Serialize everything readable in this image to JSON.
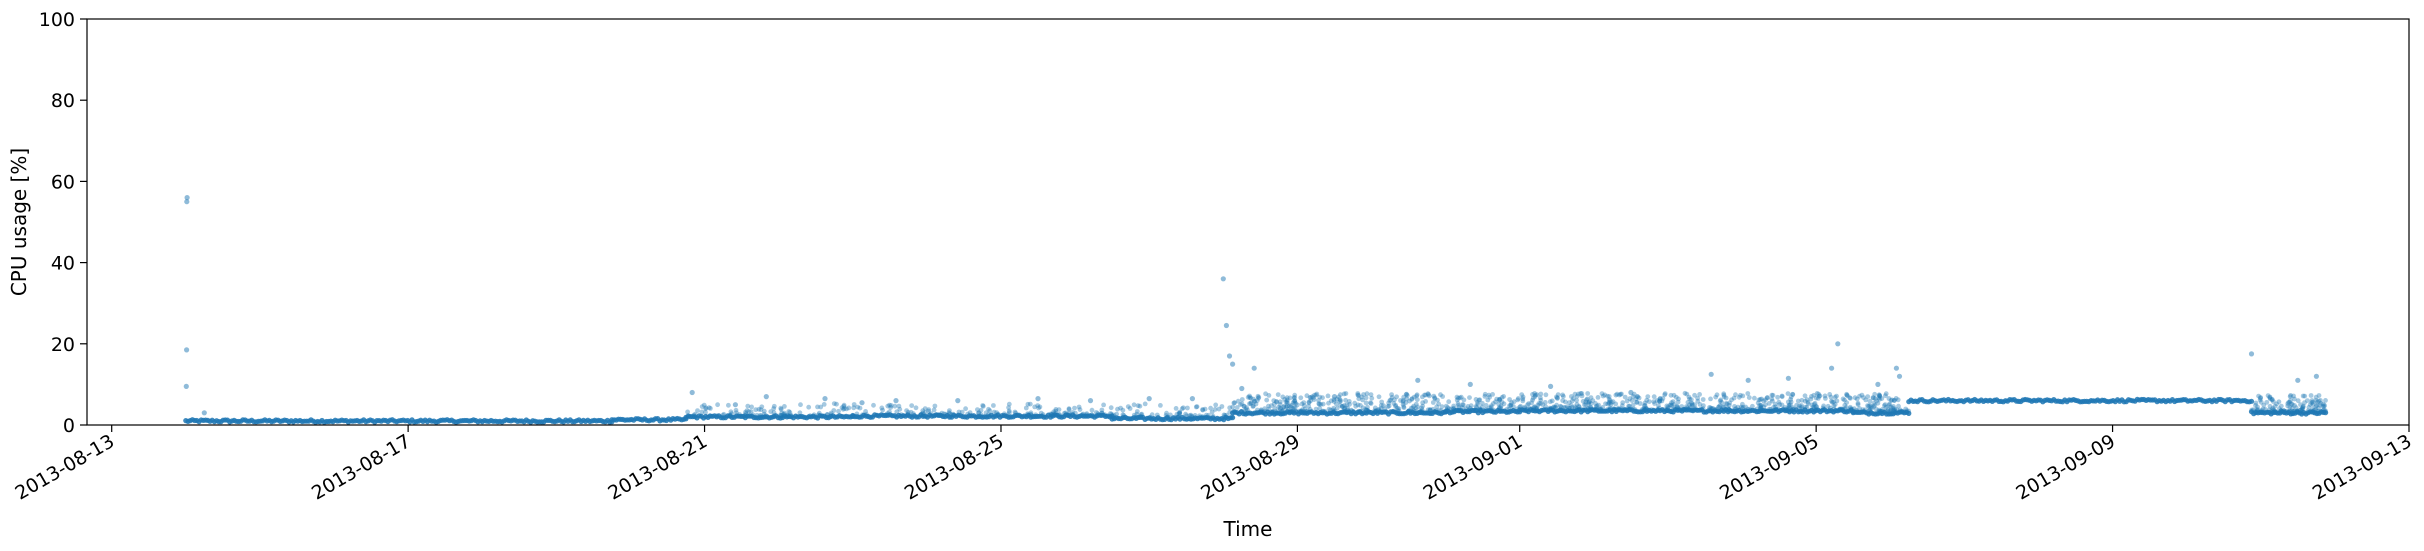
{
  "chart_data": {
    "type": "scatter",
    "title": "",
    "xlabel": "Time",
    "ylabel": "CPU usage [%]",
    "ylim": [
      0,
      100
    ],
    "xlim": [
      "2013-08-12T16:00",
      "2013-09-13T00:00"
    ],
    "x_ticks": [
      "2013-08-13",
      "2013-08-17",
      "2013-08-21",
      "2013-08-25",
      "2013-08-29",
      "2013-09-01",
      "2013-09-05",
      "2013-09-09",
      "2013-09-13"
    ],
    "y_ticks": [
      0,
      20,
      40,
      60,
      80,
      100
    ],
    "grid": false,
    "legend": "none",
    "marker_color": "#1f77b4",
    "marker_opacity": 0.4,
    "baseline_segments": [
      {
        "start": "2013-08-14T00:00",
        "end": "2013-08-19T18:00",
        "value": 1.0
      },
      {
        "start": "2013-08-19T18:00",
        "end": "2013-08-20T18:00",
        "value": 1.3
      },
      {
        "start": "2013-08-20T18:00",
        "end": "2013-08-23T00:00",
        "value": 2.0
      },
      {
        "start": "2013-08-23T00:00",
        "end": "2013-08-26T12:00",
        "value": 2.2
      },
      {
        "start": "2013-08-26T12:00",
        "end": "2013-08-28T03:00",
        "value": 1.6
      },
      {
        "start": "2013-08-28T03:00",
        "end": "2013-08-31T00:00",
        "value": 3.0
      },
      {
        "start": "2013-08-31T00:00",
        "end": "2013-09-01T00:00",
        "value": 3.3
      },
      {
        "start": "2013-09-01T00:00",
        "end": "2013-09-05T12:00",
        "value": 3.5
      },
      {
        "start": "2013-09-05T12:00",
        "end": "2013-09-06T06:00",
        "value": 3.0
      },
      {
        "start": "2013-09-06T06:00",
        "end": "2013-09-10T21:00",
        "value": 6.0
      },
      {
        "start": "2013-09-10T21:00",
        "end": "2013-09-11T21:00",
        "value": 3.0
      }
    ],
    "outliers": [
      {
        "x": "2013-08-14T00:20",
        "y": 55.0
      },
      {
        "x": "2013-08-14T00:25",
        "y": 56.0
      },
      {
        "x": "2013-08-14T00:15",
        "y": 18.5
      },
      {
        "x": "2013-08-14T00:10",
        "y": 9.5
      },
      {
        "x": "2013-08-14T06:00",
        "y": 3.0
      },
      {
        "x": "2013-08-20T20:00",
        "y": 8.0
      },
      {
        "x": "2013-08-21T10:00",
        "y": 5.0
      },
      {
        "x": "2013-08-21T20:00",
        "y": 7.0
      },
      {
        "x": "2013-08-22T15:00",
        "y": 6.5
      },
      {
        "x": "2013-08-23T03:00",
        "y": 5.5
      },
      {
        "x": "2013-08-23T14:00",
        "y": 6.0
      },
      {
        "x": "2013-08-24T10:00",
        "y": 6.0
      },
      {
        "x": "2013-08-25T12:00",
        "y": 6.5
      },
      {
        "x": "2013-08-26T05:00",
        "y": 6.0
      },
      {
        "x": "2013-08-27T00:00",
        "y": 6.5
      },
      {
        "x": "2013-08-27T14:00",
        "y": 6.5
      },
      {
        "x": "2013-08-28T00:00",
        "y": 36.0
      },
      {
        "x": "2013-08-28T01:00",
        "y": 24.5
      },
      {
        "x": "2013-08-28T02:00",
        "y": 17.0
      },
      {
        "x": "2013-08-28T03:00",
        "y": 15.0
      },
      {
        "x": "2013-08-28T10:00",
        "y": 14.0
      },
      {
        "x": "2013-08-28T06:00",
        "y": 9.0
      },
      {
        "x": "2013-08-29T12:00",
        "y": 7.0
      },
      {
        "x": "2013-08-30T15:00",
        "y": 11.0
      },
      {
        "x": "2013-08-31T08:00",
        "y": 10.0
      },
      {
        "x": "2013-09-01T10:00",
        "y": 9.5
      },
      {
        "x": "2013-09-02T12:00",
        "y": 8.0
      },
      {
        "x": "2013-09-03T14:00",
        "y": 12.5
      },
      {
        "x": "2013-09-04T02:00",
        "y": 11.0
      },
      {
        "x": "2013-09-04T15:00",
        "y": 11.5
      },
      {
        "x": "2013-09-05T07:00",
        "y": 20.0
      },
      {
        "x": "2013-09-05T05:00",
        "y": 14.0
      },
      {
        "x": "2013-09-05T20:00",
        "y": 10.0
      },
      {
        "x": "2013-09-06T02:00",
        "y": 14.0
      },
      {
        "x": "2013-09-06T03:00",
        "y": 12.0
      },
      {
        "x": "2013-09-10T21:00",
        "y": 17.5
      },
      {
        "x": "2013-09-11T12:00",
        "y": 11.0
      },
      {
        "x": "2013-09-11T18:00",
        "y": 12.0
      }
    ],
    "scatter_noise": [
      {
        "start": "2013-08-20T18:00",
        "end": "2013-08-28T03:00",
        "max": 5.0,
        "count": 300
      },
      {
        "start": "2013-08-28T03:00",
        "end": "2013-09-06T06:00",
        "max": 7.5,
        "count": 900
      },
      {
        "start": "2013-09-10T21:00",
        "end": "2013-09-11T21:00",
        "max": 7.0,
        "count": 120
      }
    ]
  }
}
